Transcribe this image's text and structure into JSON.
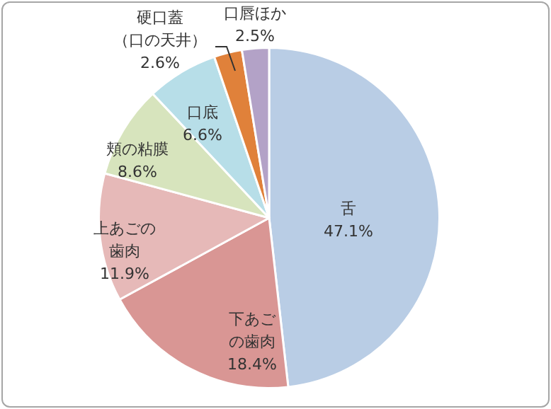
{
  "chart_data": {
    "type": "pie",
    "categories": [
      "舌",
      "下あごの歯肉",
      "上あごの歯肉",
      "頬の粘膜",
      "口底",
      "硬口蓋（口の天井）",
      "口唇ほか"
    ],
    "values": [
      47.1,
      18.4,
      11.9,
      8.6,
      6.6,
      2.6,
      2.5
    ],
    "value_labels": [
      "47.1%",
      "18.4%",
      "11.9%",
      "8.6%",
      "6.6%",
      "2.6%",
      "2.5%"
    ],
    "colors": [
      "#b9cde5",
      "#d99694",
      "#e6b9b8",
      "#d7e4bd",
      "#b7dee8",
      "#e0813a",
      "#b3a2c7"
    ],
    "legend": false
  }
}
